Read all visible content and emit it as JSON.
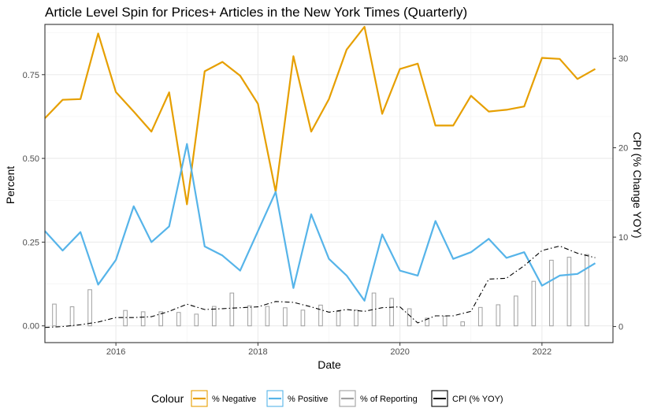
{
  "chart_data": {
    "type": "line",
    "title": "Article Level Spin for Prices+ Articles in the New York Times (Quarterly)",
    "xlabel": "Date",
    "ylabel": "Percent",
    "y2label": "CPI (% Change YOY)",
    "xlim": [
      2015,
      2023
    ],
    "ylim": [
      -0.05,
      0.9
    ],
    "y2lim": [
      -1.8,
      33.8
    ],
    "x_ticks": [
      2016,
      2018,
      2020,
      2022
    ],
    "x_tick_labels": [
      "2016",
      "2018",
      "2020",
      "2022"
    ],
    "y_ticks": [
      0,
      0.25,
      0.5,
      0.75
    ],
    "y_tick_labels": [
      "0.00",
      "0.25",
      "0.50",
      "0.75"
    ],
    "y2_ticks": [
      0,
      10,
      20,
      30
    ],
    "y2_tick_labels": [
      "0",
      "10",
      "20",
      "30"
    ],
    "grid": true,
    "legend_position": "bottom",
    "legend_title": "Colour",
    "x": [
      2015.0,
      2015.25,
      2015.5,
      2015.75,
      2016.0,
      2016.25,
      2016.5,
      2016.75,
      2017.0,
      2017.25,
      2017.5,
      2017.75,
      2018.0,
      2018.25,
      2018.5,
      2018.75,
      2019.0,
      2019.25,
      2019.5,
      2019.75,
      2020.0,
      2020.25,
      2020.5,
      2020.75,
      2021.0,
      2021.25,
      2021.5,
      2021.75,
      2022.0,
      2022.25,
      2022.5,
      2022.75
    ],
    "series": [
      {
        "name": "% Negative",
        "color": "#E69F00",
        "style": "line",
        "axis": "left",
        "values": [
          0.62,
          0.675,
          0.677,
          0.873,
          0.698,
          0.64,
          0.58,
          0.697,
          0.363,
          0.76,
          0.788,
          0.747,
          0.663,
          0.4,
          0.805,
          0.58,
          0.677,
          0.825,
          0.893,
          0.633,
          0.767,
          0.783,
          0.598,
          0.598,
          0.687,
          0.64,
          0.645,
          0.655,
          0.8,
          0.797,
          0.737,
          0.767
        ]
      },
      {
        "name": "% Positive",
        "color": "#56B4E9",
        "style": "line",
        "axis": "left",
        "values": [
          0.283,
          0.225,
          0.28,
          0.123,
          0.197,
          0.357,
          0.25,
          0.297,
          0.543,
          0.237,
          0.21,
          0.165,
          0.283,
          0.4,
          0.113,
          0.333,
          0.2,
          0.15,
          0.075,
          0.273,
          0.165,
          0.15,
          0.313,
          0.2,
          0.22,
          0.26,
          0.203,
          0.22,
          0.12,
          0.15,
          0.155,
          0.187
        ]
      },
      {
        "name": "% of Reporting",
        "color": "#A0A0A0",
        "style": "bar",
        "axis": "left",
        "values": [
          0.065,
          0.057,
          0.108,
          0.0,
          0.046,
          0.042,
          0.042,
          0.04,
          0.035,
          0.058,
          0.098,
          0.06,
          0.058,
          0.054,
          0.047,
          0.062,
          0.043,
          0.047,
          0.098,
          0.082,
          0.051,
          0.023,
          0.029,
          0.012,
          0.055,
          0.063,
          0.089,
          0.133,
          0.196,
          0.205,
          0.213,
          0.0
        ]
      },
      {
        "name": "CPI (% YOY)",
        "color": "#000000",
        "style": "dashdot",
        "axis": "right",
        "values": [
          -0.1,
          0.0,
          0.2,
          0.5,
          1.0,
          1.0,
          1.1,
          1.7,
          2.5,
          1.9,
          2.0,
          2.1,
          2.2,
          2.8,
          2.7,
          2.2,
          1.6,
          1.9,
          1.7,
          2.1,
          2.2,
          0.4,
          1.2,
          1.2,
          1.7,
          5.3,
          5.4,
          6.8,
          8.5,
          9.0,
          8.2,
          7.7
        ]
      }
    ]
  }
}
